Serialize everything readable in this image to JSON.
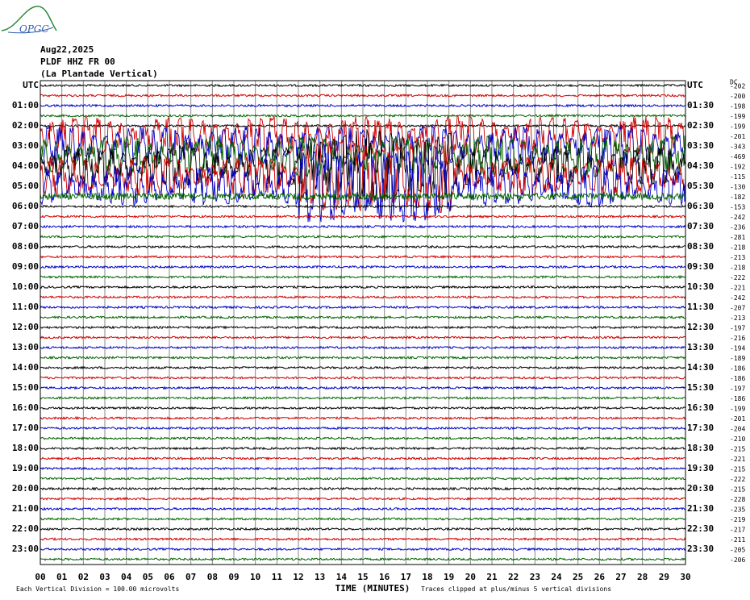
{
  "logo": "OPGC",
  "header": {
    "date": "Aug22,2025",
    "station": "PLDF HHZ FR 00",
    "site": "(La Plantade Vertical)"
  },
  "left_labels": [
    "UTC",
    "01:00",
    "02:00",
    "03:00",
    "04:00",
    "05:00",
    "06:00",
    "07:00",
    "08:00",
    "09:00",
    "10:00",
    "11:00",
    "12:00",
    "13:00",
    "14:00",
    "15:00",
    "16:00",
    "17:00",
    "18:00",
    "19:00",
    "20:00",
    "21:00",
    "22:00",
    "23:00"
  ],
  "right_labels": [
    "UTC",
    "01:30",
    "02:30",
    "03:30",
    "04:30",
    "05:30",
    "06:30",
    "07:30",
    "08:30",
    "09:30",
    "10:30",
    "11:30",
    "12:30",
    "13:30",
    "14:30",
    "15:30",
    "16:30",
    "17:30",
    "18:30",
    "19:30",
    "20:30",
    "21:30",
    "22:30",
    "23:30"
  ],
  "dc_label": "DC",
  "offsets": [
    "-202",
    "-200",
    "-198",
    "-199",
    "-199",
    "-201",
    "-343",
    "-469",
    "-192",
    "-115",
    "-130",
    "-182",
    "-153",
    "-242",
    "-236",
    "-281",
    "-218",
    "-213",
    "-218",
    "-222",
    "-221",
    "-242",
    "-207",
    "-213",
    "-197",
    "-216",
    "-194",
    "-189",
    "-186",
    "-186",
    "-197",
    "-186",
    "-199",
    "-201",
    "-204",
    "-210",
    "-215",
    "-221",
    "-215",
    "-222",
    "-215",
    "-228",
    "-235",
    "-219",
    "-217",
    "-211",
    "-205",
    "-206"
  ],
  "x_ticks": [
    "00",
    "01",
    "02",
    "03",
    "04",
    "05",
    "06",
    "07",
    "08",
    "09",
    "10",
    "11",
    "12",
    "13",
    "14",
    "15",
    "16",
    "17",
    "18",
    "19",
    "20",
    "21",
    "22",
    "23",
    "24",
    "25",
    "26",
    "27",
    "28",
    "29",
    "30"
  ],
  "x_title": "TIME (MINUTES)",
  "footer": {
    "scale": "Each Vertical Division =  100.00 microvolts",
    "clip": "Traces clipped at plus/minus 5 vertical divisions"
  }
}
